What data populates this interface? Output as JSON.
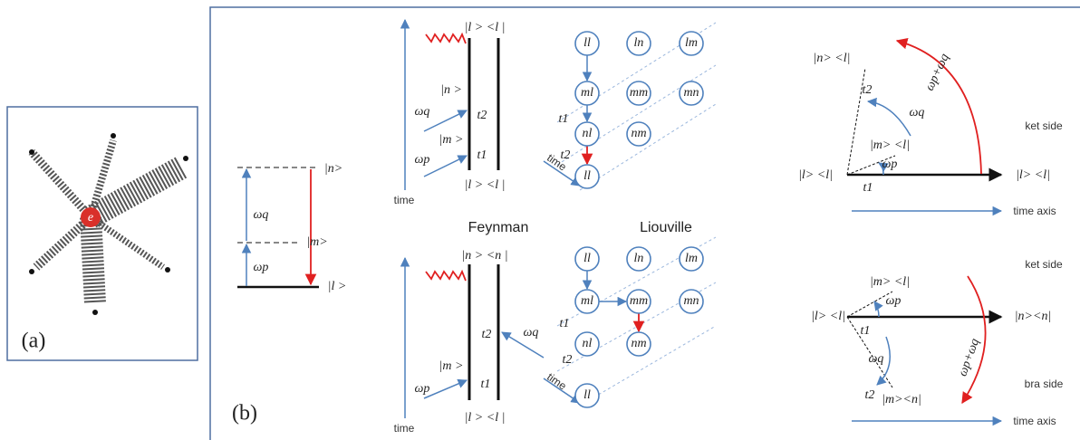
{
  "panel_a": {
    "center_label": "e",
    "label": "(a)"
  },
  "panel_b": {
    "label": "(b)",
    "levels": {
      "n": "|n>",
      "m": "|m>",
      "l": "|l >",
      "omega_q": "ωq",
      "omega_p": "ωp"
    },
    "feynman_title": "Feynman",
    "liouville_title": "Liouville",
    "top_feynman": {
      "time": "time",
      "top_state": "|l > <l |",
      "n": "|n >",
      "omega_q": "ωq",
      "t2": "t2",
      "m": "|m >",
      "omega_p": "ωp",
      "t1": "t1",
      "bottom_state": "|l > <l |"
    },
    "top_liouville": {
      "nodes": [
        "ll",
        "ln",
        "lm",
        "ml",
        "mm",
        "mn",
        "nl",
        "nm",
        "ll"
      ],
      "t1": "t1",
      "t2": "t2",
      "time": "time"
    },
    "top_vector": {
      "n_l": "|n> <l|",
      "sum": "ωp+ωq",
      "t2": "t2",
      "omega_q": "ωq",
      "m_l": "|m> <l|",
      "omega_p": "ωp",
      "l_l_left": "|l> <l|",
      "t1": "t1",
      "l_l_right": "|l> <l|",
      "side": "ket side",
      "axis": "time axis"
    },
    "bottom_feynman": {
      "time": "time",
      "top_state": "|n > <n |",
      "t2": "t2",
      "omega_q": "ωq",
      "m": "|m >",
      "omega_p": "ωp",
      "t1": "t1",
      "bottom_state": "|l > <l |"
    },
    "bottom_liouville": {
      "nodes": [
        "ll",
        "ln",
        "lm",
        "ml",
        "mm",
        "mn",
        "nl",
        "nm",
        "ll"
      ],
      "t1": "t1",
      "t2": "t2",
      "time": "time"
    },
    "bottom_vector": {
      "side_ket": "ket side",
      "m_l": "|m> <l|",
      "omega_p": "ωp",
      "l_l": "|l> <l|",
      "t1": "t1",
      "n_n": "|n><n|",
      "omega_q": "ωq",
      "sum": "ωp+ωq",
      "t2": "t2",
      "m_n": "|m><n|",
      "side_bra": "bra side",
      "axis": "time axis"
    }
  }
}
